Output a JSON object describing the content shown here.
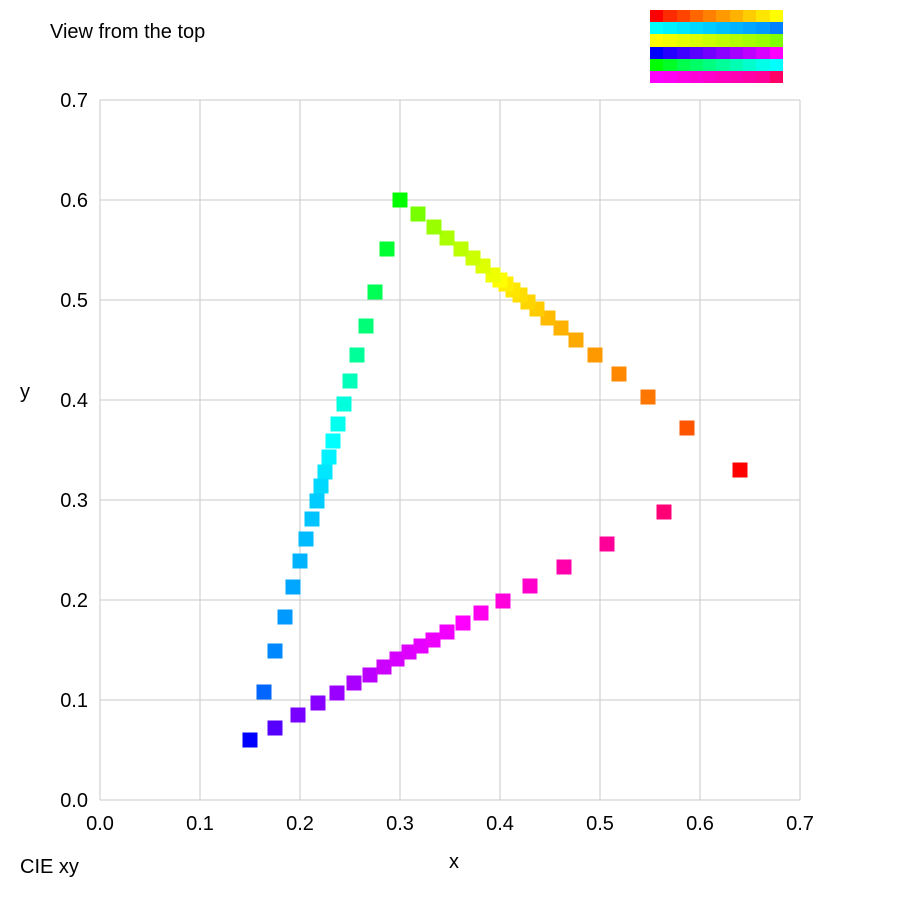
{
  "header": {
    "view_title": "View from the top",
    "corner_label": "CIE xy"
  },
  "swatch_rows": [
    [
      "#ff0000",
      "#ff2b00",
      "#ff4400",
      "#ff6600",
      "#ff8000",
      "#ff9900",
      "#ffb300",
      "#ffcc00",
      "#ffe600",
      "#ffff00"
    ],
    [
      "#00ffff",
      "#00f2ff",
      "#00e6ff",
      "#00d9ff",
      "#00ccff",
      "#00bfff",
      "#00b3ff",
      "#00a6ff",
      "#0099ff",
      "#0080ff"
    ],
    [
      "#ffff00",
      "#f2ff00",
      "#e6ff00",
      "#d9ff00",
      "#ccff00",
      "#bfff00",
      "#b3ff00",
      "#a6ff00",
      "#99ff00",
      "#80ff00"
    ],
    [
      "#0000ff",
      "#2600ff",
      "#4000ff",
      "#5900ff",
      "#7300ff",
      "#8c00ff",
      "#a600ff",
      "#bf00ff",
      "#d900ff",
      "#ff00ff"
    ],
    [
      "#00ff00",
      "#00ff26",
      "#00ff4d",
      "#00ff66",
      "#00ff80",
      "#00ff99",
      "#00ffb3",
      "#00ffcc",
      "#00ffe6",
      "#00ffff"
    ],
    [
      "#ff00ff",
      "#ff00f2",
      "#ff00e6",
      "#ff00d9",
      "#ff00cc",
      "#ff00bf",
      "#ff00b3",
      "#ff00a6",
      "#ff0099",
      "#ff0066"
    ]
  ],
  "chart_data": {
    "type": "scatter",
    "xlabel": "x",
    "ylabel": "y",
    "xlim": [
      0.0,
      0.7
    ],
    "ylim": [
      0.0,
      0.7
    ],
    "x_ticks": [
      "0.0",
      "0.1",
      "0.2",
      "0.3",
      "0.4",
      "0.5",
      "0.6",
      "0.7"
    ],
    "y_ticks": [
      "0.0",
      "0.1",
      "0.2",
      "0.3",
      "0.4",
      "0.5",
      "0.6",
      "0.7"
    ],
    "grid": true,
    "marker": "square",
    "points": [
      {
        "x": 0.64,
        "y": 0.33,
        "color": "#ff0000"
      },
      {
        "x": 0.587,
        "y": 0.372,
        "color": "#ff5500"
      },
      {
        "x": 0.548,
        "y": 0.403,
        "color": "#ff7700"
      },
      {
        "x": 0.519,
        "y": 0.426,
        "color": "#ff8800"
      },
      {
        "x": 0.495,
        "y": 0.445,
        "color": "#ff9900"
      },
      {
        "x": 0.476,
        "y": 0.46,
        "color": "#ffaa00"
      },
      {
        "x": 0.461,
        "y": 0.472,
        "color": "#ffb300"
      },
      {
        "x": 0.448,
        "y": 0.482,
        "color": "#ffbb00"
      },
      {
        "x": 0.437,
        "y": 0.491,
        "color": "#ffcc00"
      },
      {
        "x": 0.428,
        "y": 0.498,
        "color": "#ffd500"
      },
      {
        "x": 0.42,
        "y": 0.505,
        "color": "#ffdd00"
      },
      {
        "x": 0.413,
        "y": 0.51,
        "color": "#ffe600"
      },
      {
        "x": 0.406,
        "y": 0.516,
        "color": "#ffee00"
      },
      {
        "x": 0.4,
        "y": 0.52,
        "color": "#ffff00"
      },
      {
        "x": 0.393,
        "y": 0.525,
        "color": "#eeff00"
      },
      {
        "x": 0.383,
        "y": 0.534,
        "color": "#ddff00"
      },
      {
        "x": 0.373,
        "y": 0.542,
        "color": "#ccff00"
      },
      {
        "x": 0.361,
        "y": 0.551,
        "color": "#bbff00"
      },
      {
        "x": 0.347,
        "y": 0.562,
        "color": "#aaff00"
      },
      {
        "x": 0.334,
        "y": 0.573,
        "color": "#99ff00"
      },
      {
        "x": 0.318,
        "y": 0.586,
        "color": "#77ff00"
      },
      {
        "x": 0.3,
        "y": 0.6,
        "color": "#00ff00"
      },
      {
        "x": 0.287,
        "y": 0.551,
        "color": "#00ff33"
      },
      {
        "x": 0.275,
        "y": 0.508,
        "color": "#00ff55"
      },
      {
        "x": 0.266,
        "y": 0.474,
        "color": "#00ff77"
      },
      {
        "x": 0.257,
        "y": 0.445,
        "color": "#00ff99"
      },
      {
        "x": 0.25,
        "y": 0.419,
        "color": "#00ffbb"
      },
      {
        "x": 0.244,
        "y": 0.396,
        "color": "#00ffdd"
      },
      {
        "x": 0.238,
        "y": 0.376,
        "color": "#00ffee"
      },
      {
        "x": 0.233,
        "y": 0.359,
        "color": "#00ffff"
      },
      {
        "x": 0.229,
        "y": 0.343,
        "color": "#00f2ff"
      },
      {
        "x": 0.225,
        "y": 0.328,
        "color": "#00e6ff"
      },
      {
        "x": 0.221,
        "y": 0.314,
        "color": "#00d9ff"
      },
      {
        "x": 0.217,
        "y": 0.299,
        "color": "#00ccff"
      },
      {
        "x": 0.212,
        "y": 0.281,
        "color": "#00c4ff"
      },
      {
        "x": 0.206,
        "y": 0.261,
        "color": "#00bbff"
      },
      {
        "x": 0.2,
        "y": 0.239,
        "color": "#00b3ff"
      },
      {
        "x": 0.193,
        "y": 0.213,
        "color": "#00a6ff"
      },
      {
        "x": 0.185,
        "y": 0.183,
        "color": "#0099ff"
      },
      {
        "x": 0.175,
        "y": 0.149,
        "color": "#0088ff"
      },
      {
        "x": 0.164,
        "y": 0.108,
        "color": "#0066ff"
      },
      {
        "x": 0.15,
        "y": 0.06,
        "color": "#0000ff"
      },
      {
        "x": 0.175,
        "y": 0.072,
        "color": "#5500ff"
      },
      {
        "x": 0.198,
        "y": 0.085,
        "color": "#7700ff"
      },
      {
        "x": 0.218,
        "y": 0.097,
        "color": "#8800ff"
      },
      {
        "x": 0.237,
        "y": 0.107,
        "color": "#9900ff"
      },
      {
        "x": 0.254,
        "y": 0.117,
        "color": "#aa00ff"
      },
      {
        "x": 0.27,
        "y": 0.125,
        "color": "#bb00ff"
      },
      {
        "x": 0.284,
        "y": 0.133,
        "color": "#cc00ff"
      },
      {
        "x": 0.297,
        "y": 0.141,
        "color": "#d500ff"
      },
      {
        "x": 0.309,
        "y": 0.148,
        "color": "#dd00ff"
      },
      {
        "x": 0.321,
        "y": 0.154,
        "color": "#e600ff"
      },
      {
        "x": 0.333,
        "y": 0.16,
        "color": "#ee00ff"
      },
      {
        "x": 0.347,
        "y": 0.168,
        "color": "#f200ff"
      },
      {
        "x": 0.363,
        "y": 0.177,
        "color": "#ff00ff"
      },
      {
        "x": 0.381,
        "y": 0.187,
        "color": "#ff00ee"
      },
      {
        "x": 0.403,
        "y": 0.199,
        "color": "#ff00dd"
      },
      {
        "x": 0.43,
        "y": 0.214,
        "color": "#ff00cc"
      },
      {
        "x": 0.464,
        "y": 0.233,
        "color": "#ff00aa"
      },
      {
        "x": 0.507,
        "y": 0.256,
        "color": "#ff0099"
      },
      {
        "x": 0.564,
        "y": 0.288,
        "color": "#ff0077"
      }
    ]
  }
}
